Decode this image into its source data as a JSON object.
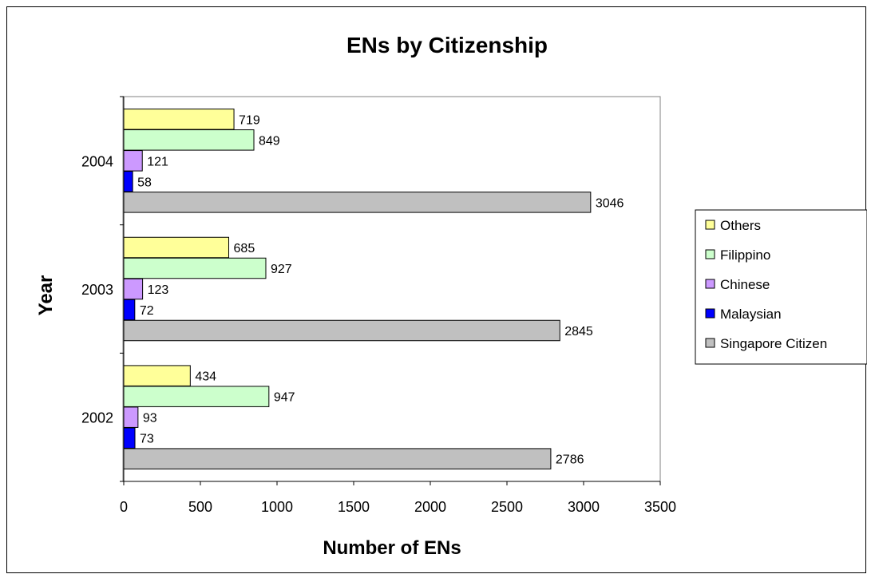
{
  "chart_data": {
    "type": "bar",
    "orientation": "horizontal",
    "title": "ENs by Citizenship",
    "xlabel": "Number of ENs",
    "ylabel": "Year",
    "categories": [
      "2002",
      "2003",
      "2004"
    ],
    "series": [
      {
        "name": "Singapore Citizen",
        "color": "#c0c0c0",
        "values": [
          2786,
          2845,
          3046
        ]
      },
      {
        "name": "Malaysian",
        "color": "#0000ff",
        "values": [
          73,
          72,
          58
        ]
      },
      {
        "name": "Chinese",
        "color": "#cc99ff",
        "values": [
          93,
          123,
          121
        ]
      },
      {
        "name": "Filippino",
        "color": "#ccffcc",
        "values": [
          947,
          927,
          849
        ]
      },
      {
        "name": "Others",
        "color": "#ffff99",
        "values": [
          434,
          685,
          719
        ]
      }
    ],
    "xlim": [
      0,
      3500
    ],
    "xticks": [
      "0",
      "500",
      "1000",
      "1500",
      "2000",
      "2500",
      "3000",
      "3500"
    ],
    "grid": false,
    "legend_position": "right",
    "legend_order": [
      "Others",
      "Filippino",
      "Chinese",
      "Malaysian",
      "Singapore Citizen"
    ]
  }
}
